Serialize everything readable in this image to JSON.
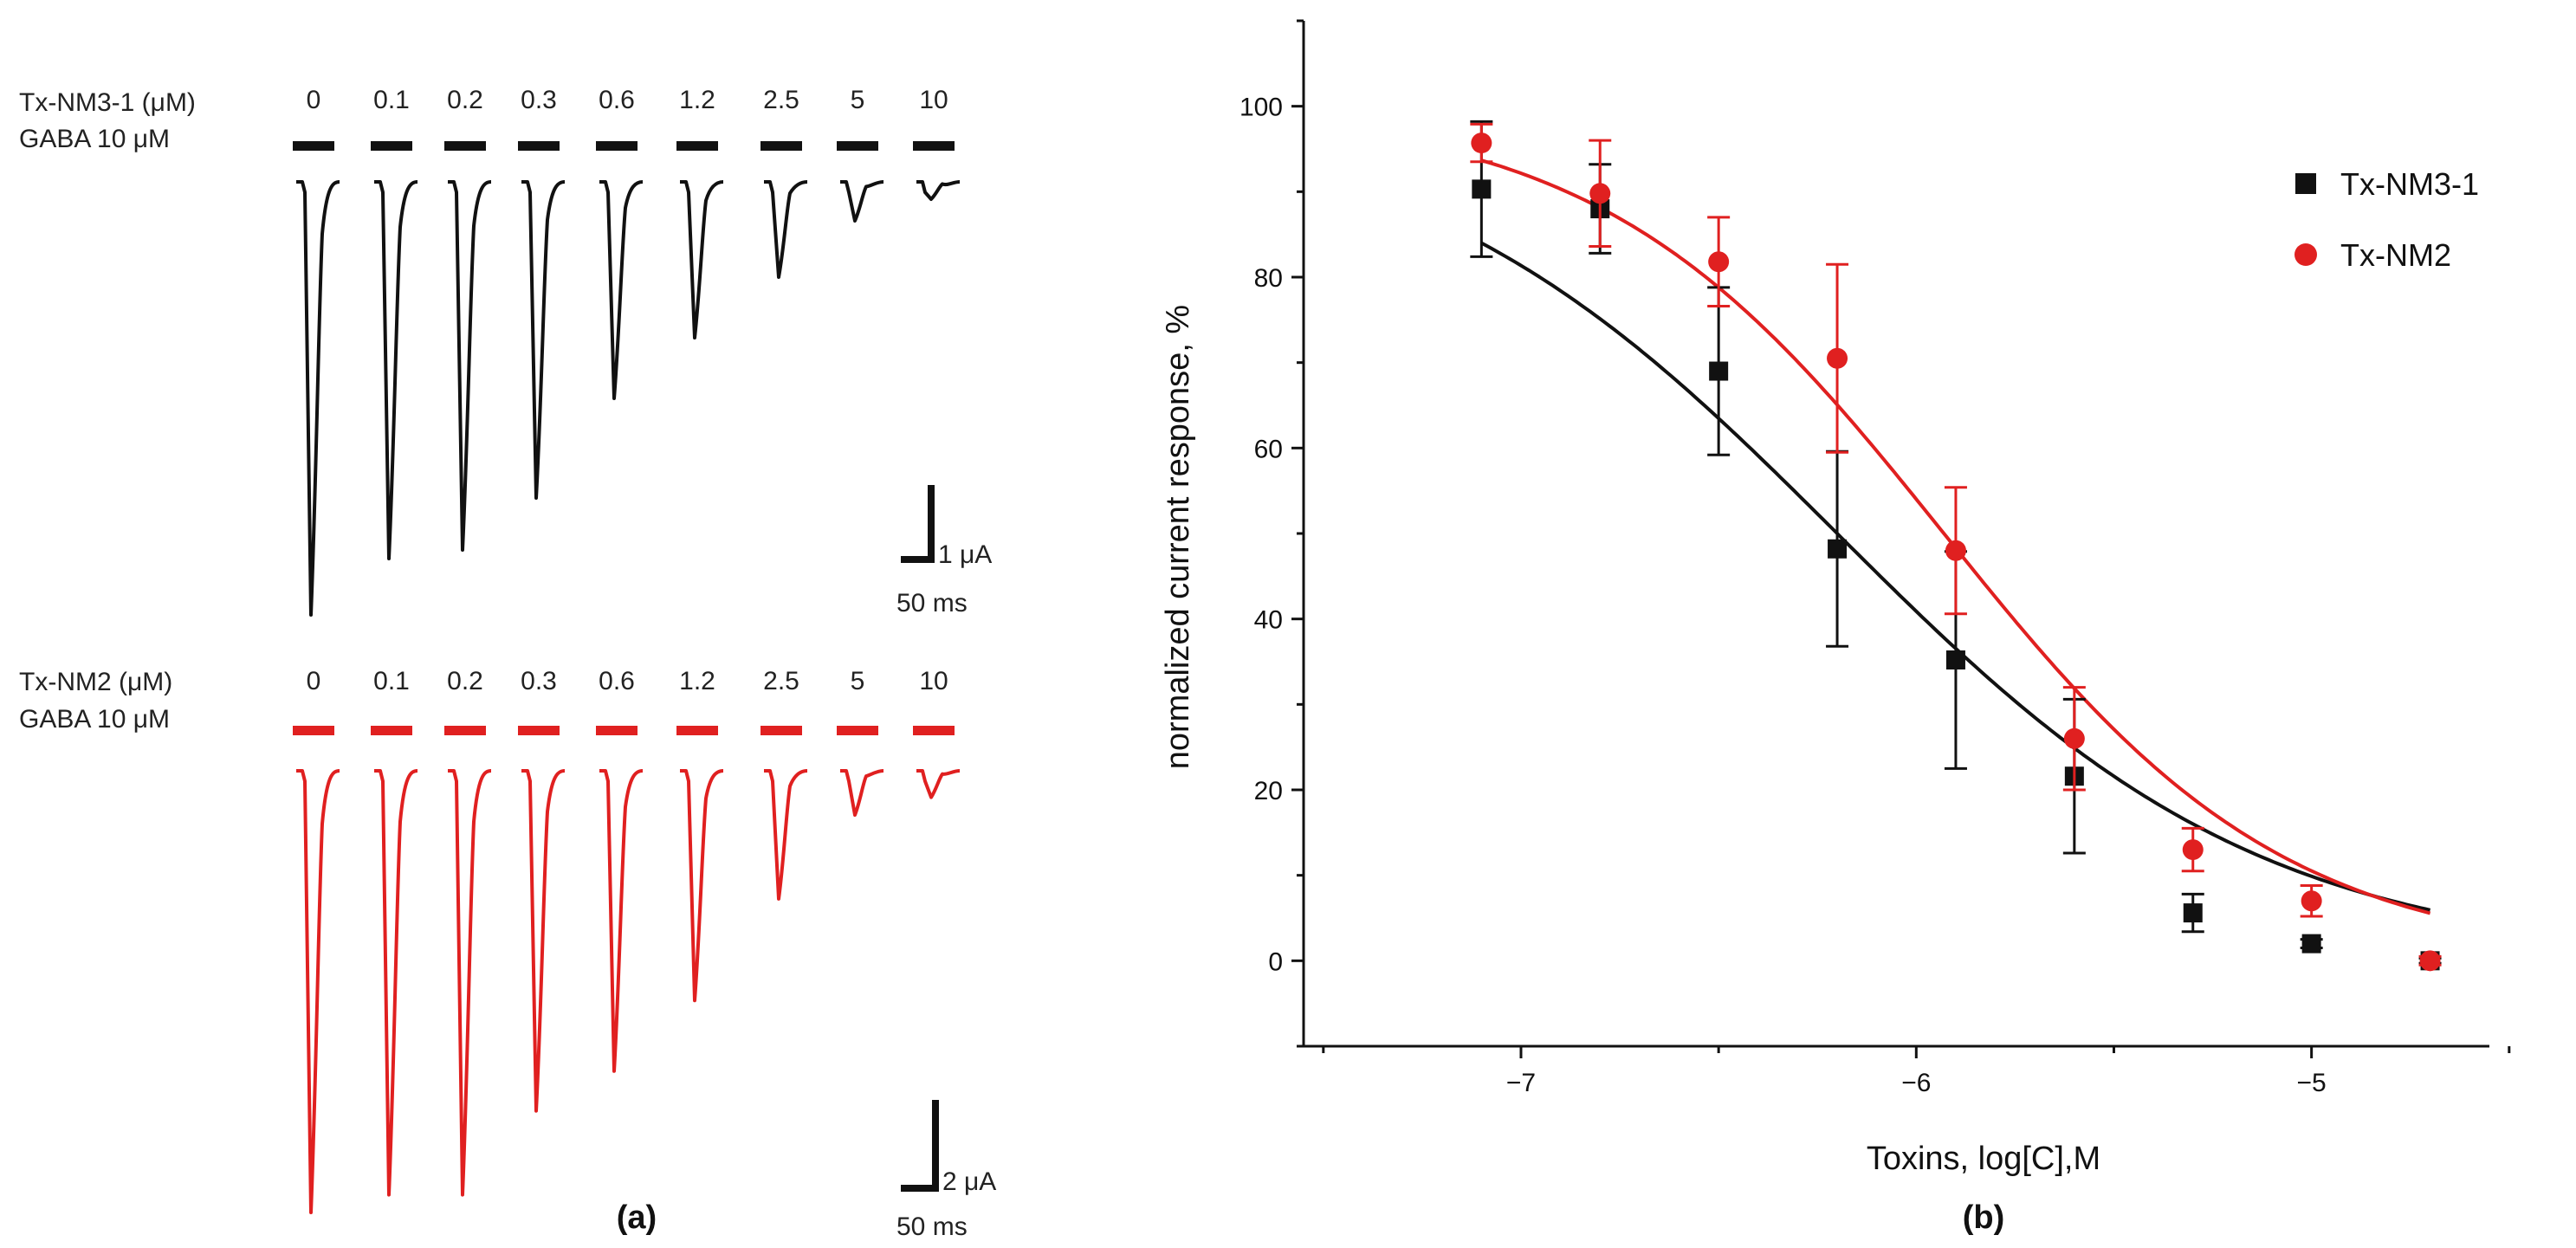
{
  "panel_a": {
    "label": "(a)",
    "top": {
      "toxin_label": "Tx-NM3-1 (μM)",
      "gaba_label": "GABA 10 μM",
      "concentrations": [
        "0",
        "0.1",
        "0.2",
        "0.3",
        "0.6",
        "1.2",
        "2.5",
        "5",
        "10"
      ],
      "peak_fraction": [
        1.0,
        0.87,
        0.85,
        0.73,
        0.5,
        0.36,
        0.22,
        0.09,
        0.04
      ],
      "color": "#111111",
      "scale_current": "1 μA",
      "scale_time": "50 ms"
    },
    "bottom": {
      "toxin_label": "Tx-NM2 (μM)",
      "gaba_label": "GABA 10 μM",
      "concentrations": [
        "0",
        "0.1",
        "0.2",
        "0.3",
        "0.6",
        "1.2",
        "2.5",
        "5",
        "10"
      ],
      "peak_fraction": [
        1.0,
        0.96,
        0.96,
        0.77,
        0.68,
        0.52,
        0.29,
        0.1,
        0.06
      ],
      "color": "#e02020",
      "scale_current": "2 μA",
      "scale_time": "50 ms"
    }
  },
  "chart_data": {
    "type": "scatter",
    "panel_label": "(b)",
    "xlabel": "Toxins, log[C],M",
    "ylabel": "normalized current response, %",
    "xlim": [
      -7.55,
      -4.55
    ],
    "ylim": [
      -10,
      110
    ],
    "x_ticks": [
      -7,
      -6,
      -5
    ],
    "x_tick_labels": [
      "−7",
      "−6",
      "−5"
    ],
    "y_ticks": [
      0,
      20,
      40,
      60,
      80,
      100
    ],
    "y_tick_labels": [
      "0",
      "20",
      "40",
      "60",
      "80",
      "100"
    ],
    "legend_position": "top-right",
    "series": [
      {
        "name": "Tx-NM3-1",
        "color": "#111111",
        "marker": "square",
        "x": [
          -7.1,
          -6.8,
          -6.5,
          -6.2,
          -5.9,
          -5.6,
          -5.3,
          -5.0,
          -4.7
        ],
        "y": [
          90.3,
          88.0,
          69.0,
          48.2,
          35.2,
          21.6,
          5.6,
          2.0,
          0.0
        ],
        "err": [
          7.9,
          5.2,
          9.8,
          11.4,
          12.7,
          9.0,
          2.2,
          0.5,
          0.3
        ],
        "fit": {
          "top": 100,
          "bottom": 0,
          "log_ic50": -6.2,
          "hill": 0.8
        }
      },
      {
        "name": "Tx-NM2",
        "color": "#e02020",
        "marker": "circle",
        "x": [
          -7.1,
          -6.8,
          -6.5,
          -6.2,
          -5.9,
          -5.6,
          -5.3,
          -5.0,
          -4.7
        ],
        "y": [
          95.7,
          89.8,
          81.8,
          70.5,
          48.0,
          26.0,
          13.0,
          7.0,
          0.0
        ],
        "err": [
          2.2,
          6.2,
          5.2,
          11.0,
          7.4,
          6.0,
          2.5,
          1.8,
          0.5
        ],
        "fit": {
          "top": 100,
          "bottom": 0,
          "log_ic50": -5.93,
          "hill": 1.0
        }
      }
    ]
  }
}
